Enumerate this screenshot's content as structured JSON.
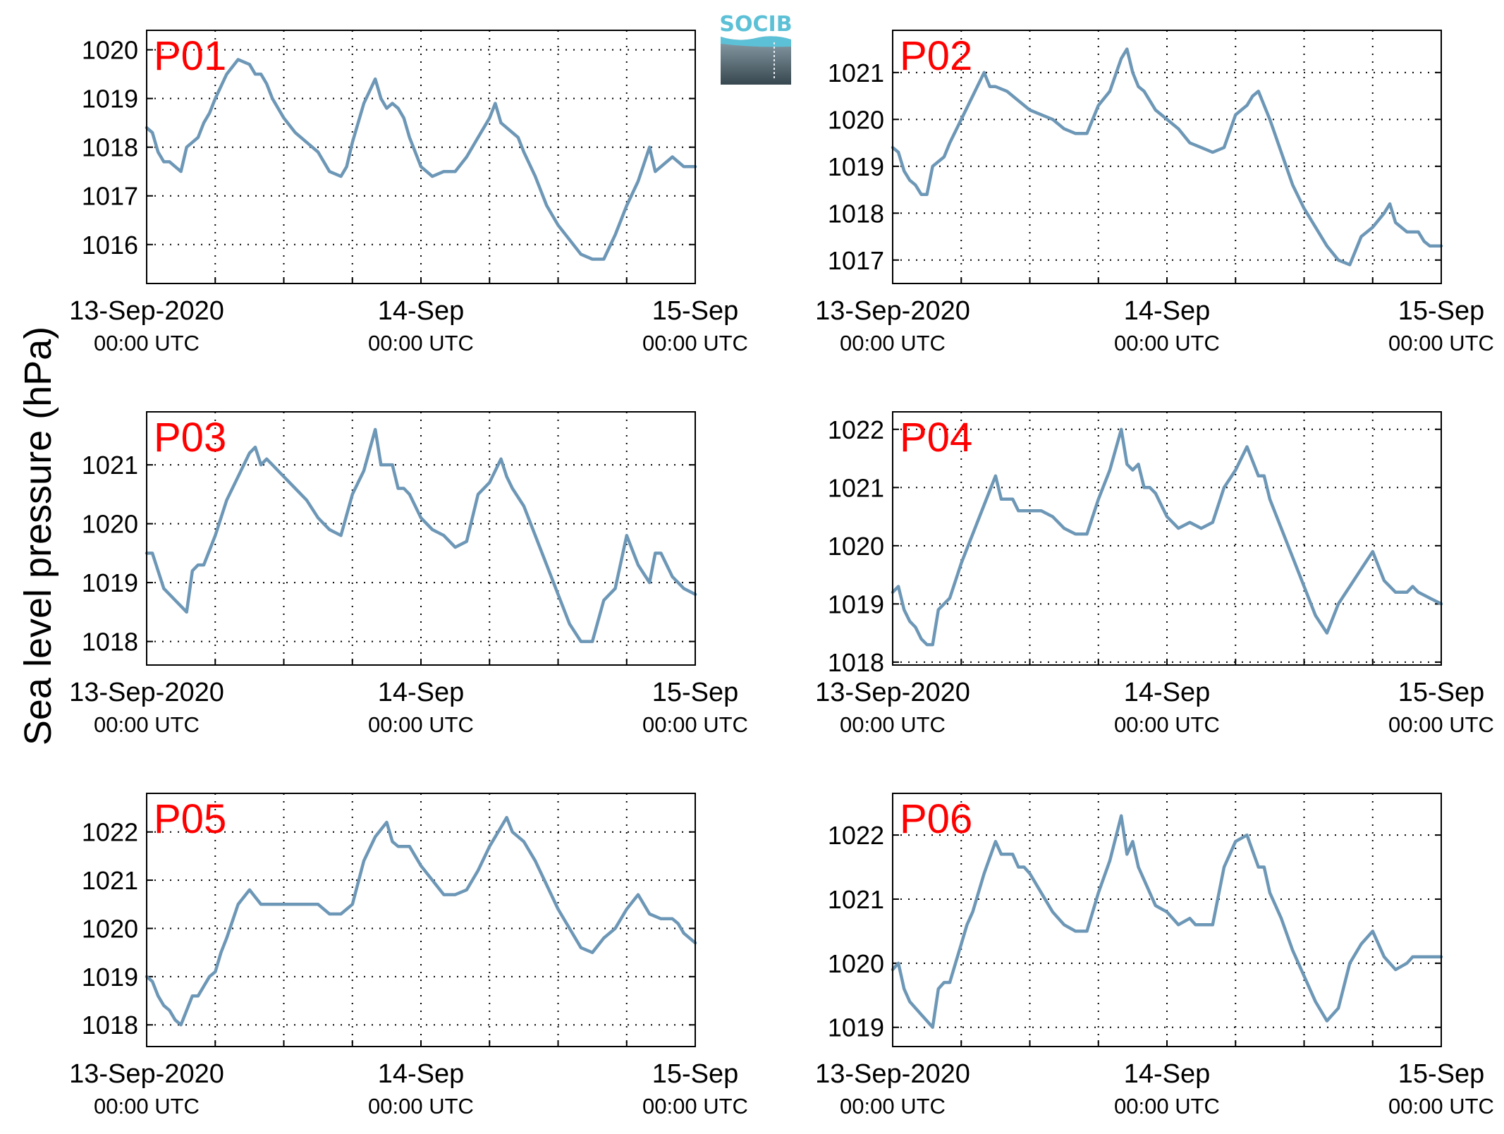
{
  "figure": {
    "ylabel": "Sea level pressure (hPa)",
    "logo_text": "SOCIB",
    "line_color": "#6d97b6",
    "label_color": "#ff0000",
    "grid_color": "#000000"
  },
  "chart_data": [
    {
      "type": "line",
      "panel_label": "P01",
      "xlim": [
        0,
        48
      ],
      "ylim": [
        1015.2,
        1020.4
      ],
      "yticks": [
        1016,
        1017,
        1018,
        1019,
        1020
      ],
      "xtick_labels": [
        {
          "x": 0,
          "date": "13-Sep-2020",
          "time": "00:00 UTC"
        },
        {
          "x": 24,
          "date": "14-Sep",
          "time": "00:00 UTC"
        },
        {
          "x": 48,
          "date": "15-Sep",
          "time": "00:00 UTC"
        }
      ],
      "xgrid": [
        6,
        12,
        18,
        24,
        30,
        36,
        42
      ],
      "series": [
        {
          "x": [
            0,
            0.5,
            1,
            1.5,
            2,
            2.5,
            3,
            3.5,
            4,
            4.5,
            5,
            5.5,
            6,
            7,
            8,
            9,
            9.5,
            10,
            10.5,
            11,
            12,
            13,
            14,
            15,
            16,
            17,
            17.5,
            18,
            18.5,
            19,
            20,
            20.5,
            21,
            21.5,
            22,
            22.5,
            23,
            24,
            25,
            26,
            27,
            28,
            29,
            30,
            30.5,
            31,
            32,
            32.5,
            33,
            34,
            35,
            36,
            37,
            38,
            39,
            40,
            41,
            42,
            43,
            44,
            44.5,
            45,
            46,
            46.5,
            47,
            48
          ],
          "values": [
            1018.4,
            1018.3,
            1017.9,
            1017.7,
            1017.7,
            1017.6,
            1017.5,
            1018.0,
            1018.1,
            1018.2,
            1018.5,
            1018.7,
            1019.0,
            1019.5,
            1019.8,
            1019.7,
            1019.5,
            1019.5,
            1019.3,
            1019.0,
            1018.6,
            1018.3,
            1018.1,
            1017.9,
            1017.5,
            1017.4,
            1017.6,
            1018.1,
            1018.5,
            1018.9,
            1019.4,
            1019.0,
            1018.8,
            1018.9,
            1018.8,
            1018.6,
            1018.2,
            1017.6,
            1017.4,
            1017.5,
            1017.5,
            1017.8,
            1018.2,
            1018.6,
            1018.9,
            1018.5,
            1018.3,
            1018.2,
            1017.9,
            1017.4,
            1016.8,
            1016.4,
            1016.1,
            1015.8,
            1015.7,
            1015.7,
            1016.2,
            1016.8,
            1017.3,
            1018.0,
            1017.5,
            1017.6,
            1017.8,
            1017.7,
            1017.6,
            1017.6
          ]
        }
      ]
    },
    {
      "type": "line",
      "panel_label": "P02",
      "xlim": [
        0,
        48
      ],
      "ylim": [
        1016.5,
        1021.9
      ],
      "yticks": [
        1017,
        1018,
        1019,
        1020,
        1021
      ],
      "xtick_labels": [
        {
          "x": 0,
          "date": "13-Sep-2020",
          "time": "00:00 UTC"
        },
        {
          "x": 24,
          "date": "14-Sep",
          "time": "00:00 UTC"
        },
        {
          "x": 48,
          "date": "15-Sep",
          "time": "00:00 UTC"
        }
      ],
      "xgrid": [
        6,
        12,
        18,
        24,
        30,
        36,
        42
      ],
      "series": [
        {
          "x": [
            0,
            0.5,
            1,
            1.5,
            2,
            2.5,
            3,
            3.5,
            4,
            4.5,
            5,
            6,
            7,
            8,
            8.5,
            9,
            10,
            11,
            12,
            13,
            14,
            15,
            16,
            17,
            18,
            19,
            20,
            20.5,
            21,
            21.5,
            22,
            23,
            24,
            25,
            26,
            27,
            28,
            29,
            30,
            31,
            31.5,
            32,
            33,
            34,
            35,
            36,
            37,
            38,
            39,
            40,
            41,
            42,
            43,
            43.5,
            44,
            45,
            46,
            46.5,
            47,
            48
          ],
          "values": [
            1019.4,
            1019.3,
            1018.9,
            1018.7,
            1018.6,
            1018.4,
            1018.4,
            1019.0,
            1019.1,
            1019.2,
            1019.5,
            1020.0,
            1020.5,
            1021.0,
            1020.7,
            1020.7,
            1020.6,
            1020.4,
            1020.2,
            1020.1,
            1020.0,
            1019.8,
            1019.7,
            1019.7,
            1020.3,
            1020.6,
            1021.3,
            1021.5,
            1021.0,
            1020.7,
            1020.6,
            1020.2,
            1020.0,
            1019.8,
            1019.5,
            1019.4,
            1019.3,
            1019.4,
            1020.1,
            1020.3,
            1020.5,
            1020.6,
            1020.0,
            1019.3,
            1018.6,
            1018.1,
            1017.7,
            1017.3,
            1017.0,
            1016.9,
            1017.5,
            1017.7,
            1018.0,
            1018.2,
            1017.8,
            1017.6,
            1017.6,
            1017.4,
            1017.3,
            1017.3
          ]
        }
      ]
    },
    {
      "type": "line",
      "panel_label": "P03",
      "xlim": [
        0,
        48
      ],
      "ylim": [
        1017.6,
        1021.9
      ],
      "yticks": [
        1018,
        1019,
        1020,
        1021
      ],
      "xtick_labels": [
        {
          "x": 0,
          "date": "13-Sep-2020",
          "time": "00:00 UTC"
        },
        {
          "x": 24,
          "date": "14-Sep",
          "time": "00:00 UTC"
        },
        {
          "x": 48,
          "date": "15-Sep",
          "time": "00:00 UTC"
        }
      ],
      "xgrid": [
        6,
        12,
        18,
        24,
        30,
        36,
        42
      ],
      "series": [
        {
          "x": [
            0,
            0.5,
            1,
            1.5,
            2,
            2.5,
            3,
            3.5,
            4,
            4.5,
            5,
            6,
            7,
            8,
            9,
            9.5,
            10,
            10.5,
            11,
            11.5,
            12,
            13,
            14,
            15,
            16,
            17,
            18,
            19,
            20,
            20.5,
            21,
            21.5,
            22,
            22.5,
            23,
            24,
            25,
            26,
            27,
            28,
            29,
            30,
            31,
            31.5,
            32,
            33,
            34,
            35,
            36,
            37,
            38,
            39,
            40,
            41,
            42,
            43,
            44,
            44.5,
            45,
            46,
            46.5,
            47,
            48
          ],
          "values": [
            1019.5,
            1019.5,
            1019.2,
            1018.9,
            1018.8,
            1018.7,
            1018.6,
            1018.5,
            1019.2,
            1019.3,
            1019.3,
            1019.8,
            1020.4,
            1020.8,
            1021.2,
            1021.3,
            1021.0,
            1021.1,
            1021.0,
            1020.9,
            1020.8,
            1020.6,
            1020.4,
            1020.1,
            1019.9,
            1019.8,
            1020.5,
            1020.9,
            1021.6,
            1021.0,
            1021.0,
            1021.0,
            1020.6,
            1020.6,
            1020.5,
            1020.1,
            1019.9,
            1019.8,
            1019.6,
            1019.7,
            1020.5,
            1020.7,
            1021.1,
            1020.8,
            1020.6,
            1020.3,
            1019.8,
            1019.3,
            1018.8,
            1018.3,
            1018.0,
            1018.0,
            1018.7,
            1018.9,
            1019.8,
            1019.3,
            1019.0,
            1019.5,
            1019.5,
            1019.1,
            1019.0,
            1018.9,
            1018.8
          ]
        }
      ]
    },
    {
      "type": "line",
      "panel_label": "P04",
      "xlim": [
        0,
        48
      ],
      "ylim": [
        1017.95,
        1022.3
      ],
      "yticks": [
        1018,
        1019,
        1020,
        1021,
        1022
      ],
      "xtick_labels": [
        {
          "x": 0,
          "date": "13-Sep-2020",
          "time": "00:00 UTC"
        },
        {
          "x": 24,
          "date": "14-Sep",
          "time": "00:00 UTC"
        },
        {
          "x": 48,
          "date": "15-Sep",
          "time": "00:00 UTC"
        }
      ],
      "xgrid": [
        6,
        12,
        18,
        24,
        30,
        36,
        42
      ],
      "series": [
        {
          "x": [
            0,
            0.5,
            1,
            1.5,
            2,
            2.5,
            3,
            3.5,
            4,
            4.5,
            5,
            6,
            7,
            8,
            9,
            9.5,
            10,
            10.5,
            11,
            12,
            13,
            14,
            15,
            16,
            17,
            18,
            19,
            20,
            20.5,
            21,
            21.5,
            22,
            22.5,
            23,
            24,
            25,
            26,
            27,
            28,
            29,
            30,
            31,
            32,
            32.5,
            33,
            34,
            35,
            36,
            37,
            38,
            39,
            40,
            41,
            42,
            43,
            44,
            45,
            45.5,
            46,
            47,
            48
          ],
          "values": [
            1019.2,
            1019.3,
            1018.9,
            1018.7,
            1018.6,
            1018.4,
            1018.3,
            1018.3,
            1018.9,
            1019.0,
            1019.1,
            1019.7,
            1020.2,
            1020.7,
            1021.2,
            1020.8,
            1020.8,
            1020.8,
            1020.6,
            1020.6,
            1020.6,
            1020.5,
            1020.3,
            1020.2,
            1020.2,
            1020.8,
            1021.3,
            1022.0,
            1021.4,
            1021.3,
            1021.4,
            1021.0,
            1021.0,
            1020.9,
            1020.5,
            1020.3,
            1020.4,
            1020.3,
            1020.4,
            1021.0,
            1021.3,
            1021.7,
            1021.2,
            1021.2,
            1020.8,
            1020.3,
            1019.8,
            1019.3,
            1018.8,
            1018.5,
            1019.0,
            1019.3,
            1019.6,
            1019.9,
            1019.4,
            1019.2,
            1019.2,
            1019.3,
            1019.2,
            1019.1,
            1019.0
          ]
        }
      ]
    },
    {
      "type": "line",
      "panel_label": "P05",
      "xlim": [
        0,
        48
      ],
      "ylim": [
        1017.55,
        1022.8
      ],
      "yticks": [
        1018,
        1019,
        1020,
        1021,
        1022
      ],
      "xtick_labels": [
        {
          "x": 0,
          "date": "13-Sep-2020",
          "time": "00:00 UTC"
        },
        {
          "x": 24,
          "date": "14-Sep",
          "time": "00:00 UTC"
        },
        {
          "x": 48,
          "date": "15-Sep",
          "time": "00:00 UTC"
        }
      ],
      "xgrid": [
        6,
        12,
        18,
        24,
        30,
        36,
        42
      ],
      "series": [
        {
          "x": [
            0,
            0.5,
            1,
            1.5,
            2,
            2.5,
            3,
            3.5,
            4,
            4.5,
            5,
            5.5,
            6,
            6.5,
            7,
            8,
            9,
            10,
            11,
            12,
            13,
            14,
            15,
            16,
            17,
            18,
            19,
            20,
            21,
            21.5,
            22,
            23,
            24,
            25,
            26,
            27,
            28,
            29,
            30,
            31,
            31.5,
            32,
            33,
            34,
            35,
            36,
            37,
            38,
            39,
            40,
            41,
            42,
            43,
            44,
            45,
            46,
            46.5,
            47,
            48
          ],
          "values": [
            1019.0,
            1018.9,
            1018.6,
            1018.4,
            1018.3,
            1018.1,
            1018.0,
            1018.3,
            1018.6,
            1018.6,
            1018.8,
            1019.0,
            1019.1,
            1019.5,
            1019.8,
            1020.5,
            1020.8,
            1020.5,
            1020.5,
            1020.5,
            1020.5,
            1020.5,
            1020.5,
            1020.3,
            1020.3,
            1020.5,
            1021.4,
            1021.9,
            1022.2,
            1021.8,
            1021.7,
            1021.7,
            1021.3,
            1021.0,
            1020.7,
            1020.7,
            1020.8,
            1021.2,
            1021.7,
            1022.1,
            1022.3,
            1022.0,
            1021.8,
            1021.4,
            1020.9,
            1020.4,
            1020.0,
            1019.6,
            1019.5,
            1019.8,
            1020.0,
            1020.4,
            1020.7,
            1020.3,
            1020.2,
            1020.2,
            1020.1,
            1019.9,
            1019.7
          ]
        }
      ]
    },
    {
      "type": "line",
      "panel_label": "P06",
      "xlim": [
        0,
        48
      ],
      "ylim": [
        1018.7,
        1022.65
      ],
      "yticks": [
        1019,
        1020,
        1021,
        1022
      ],
      "xtick_labels": [
        {
          "x": 0,
          "date": "13-Sep-2020",
          "time": "00:00 UTC"
        },
        {
          "x": 24,
          "date": "14-Sep",
          "time": "00:00 UTC"
        },
        {
          "x": 48,
          "date": "15-Sep",
          "time": "00:00 UTC"
        }
      ],
      "xgrid": [
        6,
        12,
        18,
        24,
        30,
        36,
        42
      ],
      "series": [
        {
          "x": [
            0,
            0.5,
            1,
            1.5,
            2,
            2.5,
            3,
            3.5,
            4,
            4.5,
            5,
            5.5,
            6,
            6.5,
            7,
            8,
            9,
            9.5,
            10,
            10.5,
            11,
            11.5,
            12,
            13,
            14,
            15,
            16,
            17,
            18,
            19,
            20,
            20.5,
            21,
            21.5,
            22,
            23,
            24,
            25,
            26,
            26.5,
            27,
            28,
            29,
            30,
            31,
            32,
            32.5,
            33,
            34,
            35,
            36,
            37,
            38,
            39,
            40,
            41,
            42,
            43,
            44,
            45,
            45.5,
            46,
            47,
            48
          ],
          "values": [
            1019.9,
            1020.0,
            1019.6,
            1019.4,
            1019.3,
            1019.2,
            1019.1,
            1019.0,
            1019.6,
            1019.7,
            1019.7,
            1020.0,
            1020.3,
            1020.6,
            1020.8,
            1021.4,
            1021.9,
            1021.7,
            1021.7,
            1021.7,
            1021.5,
            1021.5,
            1021.4,
            1021.1,
            1020.8,
            1020.6,
            1020.5,
            1020.5,
            1021.1,
            1021.6,
            1022.3,
            1021.7,
            1021.9,
            1021.5,
            1021.3,
            1020.9,
            1020.8,
            1020.6,
            1020.7,
            1020.6,
            1020.6,
            1020.6,
            1021.5,
            1021.9,
            1022.0,
            1021.5,
            1021.5,
            1021.1,
            1020.7,
            1020.2,
            1019.8,
            1019.4,
            1019.1,
            1019.3,
            1020.0,
            1020.3,
            1020.5,
            1020.1,
            1019.9,
            1020.0,
            1020.1,
            1020.1,
            1020.1,
            1020.1
          ]
        }
      ]
    }
  ]
}
